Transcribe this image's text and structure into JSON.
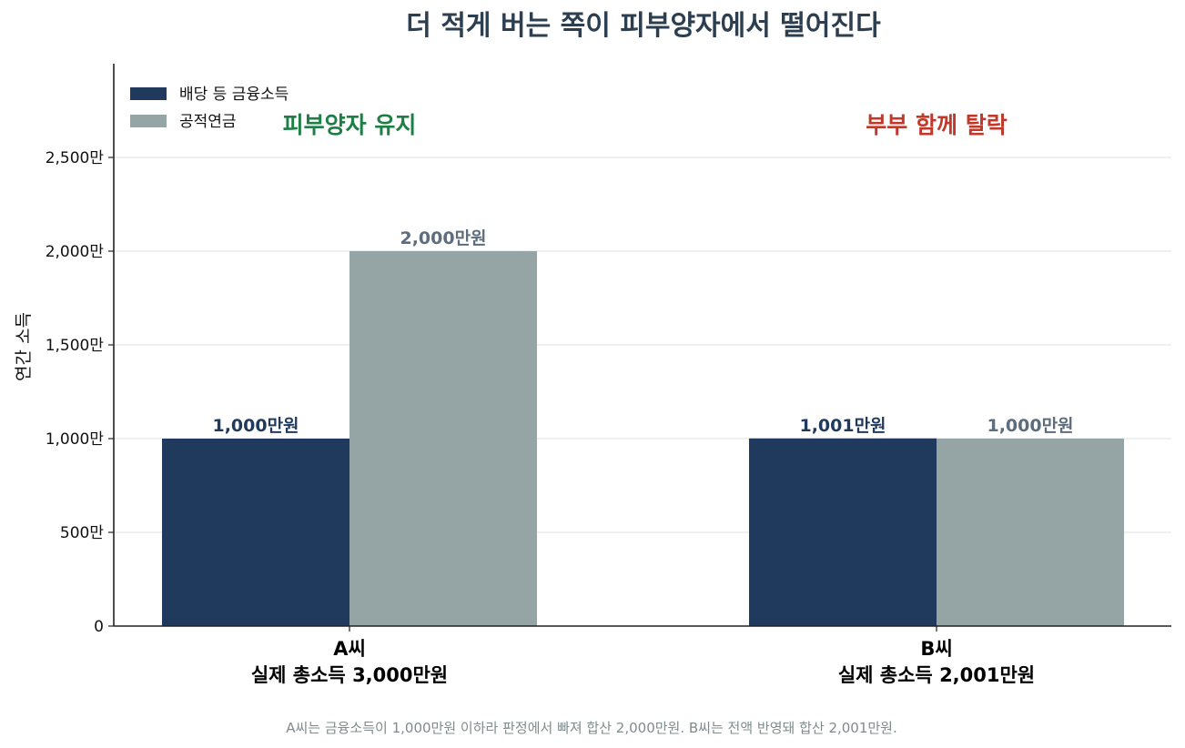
{
  "colors": {
    "financial": "#1f3a5c",
    "pension": "#95a5a6",
    "financial_label": "#1f3a5c",
    "pension_label": "#5d6d7e",
    "keep": "#1e7e45",
    "drop": "#c0392b",
    "grid": "#e8e8e8",
    "axis": "#222222"
  },
  "chart_data": {
    "type": "bar",
    "title": "더 적게 버는 쪽이 피부양자에서 떨어진다",
    "ylabel": "연간 소득",
    "xlabel": "",
    "ylim": [
      0,
      3000
    ],
    "yticks": [
      0,
      500,
      1000,
      1500,
      2000,
      2500
    ],
    "ytick_labels": [
      "0",
      "500만",
      "1,000만",
      "1,500만",
      "2,000만",
      "2,500만"
    ],
    "grid": true,
    "legend_position": "top-left",
    "categories": [
      {
        "line1": "A씨",
        "line2": "실제 총소득 3,000만원"
      },
      {
        "line1": "B씨",
        "line2": "실제 총소득 2,001만원"
      }
    ],
    "series": [
      {
        "name": "배당 등 금융소득",
        "values": [
          1000,
          1001
        ],
        "labels": [
          "1,000만원",
          "1,001만원"
        ]
      },
      {
        "name": "공적연금",
        "values": [
          2000,
          1000
        ],
        "labels": [
          "2,000만원",
          "1,000만원"
        ]
      }
    ],
    "annotations": [
      {
        "category_index": 0,
        "text": "피부양자 유지",
        "tone": "keep"
      },
      {
        "category_index": 1,
        "text": "부부 함께 탈락",
        "tone": "drop"
      }
    ],
    "caption": "A씨는 금융소득이 1,000만원 이하라 판정에서 빠져 합산 2,000만원. B씨는 전액 반영돼 합산 2,001만원."
  }
}
